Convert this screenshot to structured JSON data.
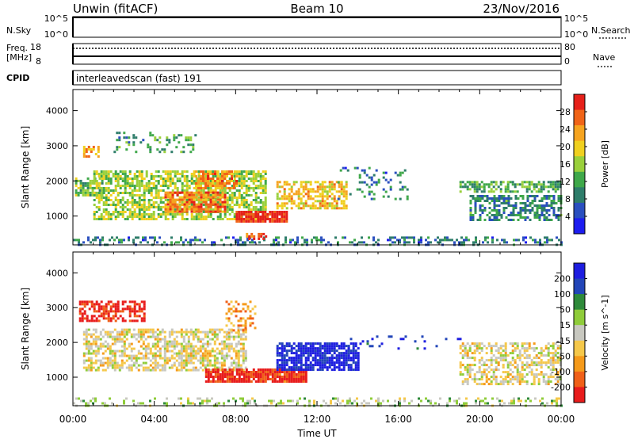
{
  "header": {
    "station": "Unwin (fitACF)",
    "beam": "Beam 10",
    "date": "23/Nov/2016"
  },
  "strips": {
    "nsky": {
      "label": "N.Sky",
      "ticks": [
        "10^5",
        "10^0"
      ],
      "right_ticks": [
        "10^5",
        "10^0"
      ],
      "right_label": "N.Search"
    },
    "freq": {
      "label_top": "Freq.",
      "label_bottom": "[MHz]",
      "ticks": [
        "18",
        "8"
      ],
      "right_ticks": [
        "80",
        "0"
      ],
      "right_label": "Nave"
    },
    "cpid": {
      "label": "CPID",
      "text": "interleavedscan (fast) 191"
    }
  },
  "axes": {
    "ylabel": "Slant Range [km]",
    "xlabel": "Time UT",
    "yticks": [
      1000,
      2000,
      3000,
      4000
    ],
    "xticks": [
      "00:00",
      "04:00",
      "08:00",
      "12:00",
      "16:00",
      "20:00",
      "00:00"
    ]
  },
  "colors": {
    "power": [
      "#1d1df0",
      "#2a4fbf",
      "#2e7d6a",
      "#3fa84a",
      "#9ad03c",
      "#f0d020",
      "#f6a420",
      "#f06418",
      "#e6201a"
    ],
    "velocity": [
      "#e81c1c",
      "#f06018",
      "#f59a1a",
      "#f5c84a",
      "#c8c8c0",
      "#8fcc3a",
      "#2e8a3a",
      "#2346b8",
      "#1e1ee0"
    ]
  },
  "chart_data": [
    {
      "type": "heatmap",
      "title": "",
      "quantity": "Power",
      "xlabel": "Time UT",
      "ylabel": "Slant Range [km]",
      "xlim": [
        0,
        24
      ],
      "ylim": [
        180,
        4600
      ],
      "colorbar": {
        "label": "Power [dB]",
        "ticks": [
          "28",
          "24",
          "20",
          "16",
          "12",
          "8",
          "4"
        ],
        "range": [
          0,
          32
        ]
      },
      "regions": [
        {
          "t0": 0.0,
          "t1": 24.0,
          "r0": 200,
          "r1": 420,
          "level": 0.25,
          "density": 0.35
        },
        {
          "t0": 0.1,
          "t1": 1.5,
          "r0": 1600,
          "r1": 2100,
          "level": 0.45,
          "density": 0.7
        },
        {
          "t0": 0.5,
          "t1": 1.3,
          "r0": 2700,
          "r1": 3000,
          "level": 0.7,
          "density": 0.6
        },
        {
          "t0": 1.0,
          "t1": 9.5,
          "r0": 900,
          "r1": 2300,
          "level": 0.5,
          "density": 0.65
        },
        {
          "t0": 2.0,
          "t1": 6.0,
          "r0": 2800,
          "r1": 3400,
          "level": 0.35,
          "density": 0.2
        },
        {
          "t0": 4.5,
          "t1": 7.5,
          "r0": 1100,
          "r1": 1700,
          "level": 0.8,
          "density": 0.75
        },
        {
          "t0": 6.0,
          "t1": 8.0,
          "r0": 1800,
          "r1": 2300,
          "level": 0.75,
          "density": 0.7
        },
        {
          "t0": 8.0,
          "t1": 10.5,
          "r0": 850,
          "r1": 1150,
          "level": 0.95,
          "density": 0.9
        },
        {
          "t0": 10.0,
          "t1": 13.5,
          "r0": 1200,
          "r1": 2000,
          "level": 0.65,
          "density": 0.6
        },
        {
          "t0": 8.5,
          "t1": 9.5,
          "r0": 380,
          "r1": 520,
          "level": 0.85,
          "density": 0.7
        },
        {
          "t0": 13.0,
          "t1": 16.5,
          "r0": 1500,
          "r1": 2400,
          "level": 0.25,
          "density": 0.15
        },
        {
          "t0": 19.0,
          "t1": 24.0,
          "r0": 1700,
          "r1": 2000,
          "level": 0.4,
          "density": 0.6
        },
        {
          "t0": 19.5,
          "t1": 24.0,
          "r0": 900,
          "r1": 1600,
          "level": 0.3,
          "density": 0.55
        }
      ]
    },
    {
      "type": "heatmap",
      "title": "",
      "quantity": "Velocity",
      "xlabel": "Time UT",
      "ylabel": "Slant Range [km]",
      "xlim": [
        0,
        24
      ],
      "ylim": [
        180,
        4600
      ],
      "colorbar": {
        "label": "Velocity [m s^-1]",
        "ticks": [
          "200",
          "100",
          "50",
          "15",
          "-15",
          "-50",
          "-100",
          "-200"
        ],
        "range": [
          -250,
          250
        ]
      },
      "regions": [
        {
          "t0": 0.0,
          "t1": 24.0,
          "r0": 200,
          "r1": 420,
          "level": 0.55,
          "density": 0.3
        },
        {
          "t0": 0.3,
          "t1": 3.5,
          "r0": 2600,
          "r1": 3200,
          "level": 0.05,
          "density": 0.55
        },
        {
          "t0": 0.5,
          "t1": 8.5,
          "r0": 1200,
          "r1": 2400,
          "level": 0.45,
          "density": 0.6
        },
        {
          "t0": 6.5,
          "t1": 11.5,
          "r0": 900,
          "r1": 1250,
          "level": 0.08,
          "density": 0.9
        },
        {
          "t0": 7.5,
          "t1": 9.0,
          "r0": 2300,
          "r1": 3200,
          "level": 0.3,
          "density": 0.35
        },
        {
          "t0": 10.0,
          "t1": 14.0,
          "r0": 1200,
          "r1": 2000,
          "level": 0.95,
          "density": 0.8
        },
        {
          "t0": 13.5,
          "t1": 19.0,
          "r0": 1800,
          "r1": 2200,
          "level": 0.9,
          "density": 0.1
        },
        {
          "t0": 19.0,
          "t1": 24.0,
          "r0": 800,
          "r1": 2000,
          "level": 0.45,
          "density": 0.55
        }
      ]
    }
  ]
}
